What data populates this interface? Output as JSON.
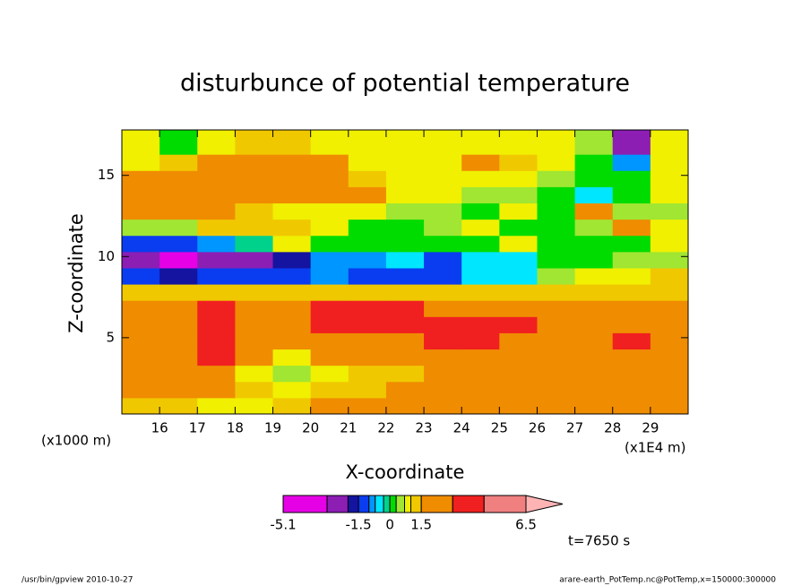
{
  "chart_data": {
    "type": "contour",
    "title": "disturbunce of potential temperature",
    "x_label": "X-coordinate",
    "y_label": "Z-coordinate",
    "y_unit": "(x1000 m)",
    "x_unit": "(x1E4 m)",
    "time_label": "t=7650 s",
    "footer_left": "/usr/bin/gpview  2010-10-27",
    "footer_right": "arare-earth_PotTemp.nc@PotTemp,x=150000:300000",
    "xlim": [
      15,
      30
    ],
    "ylim": [
      0.3,
      17.8
    ],
    "xticks": [
      16,
      17,
      18,
      19,
      20,
      21,
      22,
      23,
      24,
      25,
      26,
      27,
      28,
      29
    ],
    "yticks": [
      5,
      10,
      15
    ],
    "x": [
      15.5,
      16.5,
      17.5,
      18.5,
      19.5,
      20.5,
      21.5,
      22.5,
      23.5,
      24.5,
      25.5,
      26.5,
      27.5,
      28.5,
      29.5
    ],
    "z": [
      0.8,
      1.8,
      2.8,
      3.8,
      4.8,
      5.8,
      6.8,
      7.8,
      8.8,
      9.8,
      10.8,
      11.8,
      12.8,
      13.8,
      14.8,
      15.8,
      16.8
    ],
    "values": [
      [
        1.2,
        1.2,
        0.8,
        0.8,
        1.2,
        2,
        2,
        2,
        2,
        2,
        2,
        2,
        2,
        2,
        2
      ],
      [
        2,
        2,
        1.8,
        1.2,
        0.8,
        1.2,
        1.2,
        2,
        2,
        2,
        2,
        2,
        2,
        2,
        2
      ],
      [
        2,
        2,
        2,
        0.8,
        0.5,
        0.8,
        1.2,
        1.2,
        2,
        2,
        2,
        2,
        2,
        2,
        2
      ],
      [
        2,
        2,
        3.5,
        2,
        0.8,
        2,
        2,
        2,
        2,
        2,
        2,
        2,
        2,
        2,
        2
      ],
      [
        2,
        2,
        3.5,
        2,
        2,
        2,
        2,
        2,
        3.5,
        3.5,
        2,
        2,
        2,
        3.5,
        2
      ],
      [
        2,
        2,
        3.5,
        2,
        2,
        3.5,
        3.5,
        3.5,
        3.5,
        3.5,
        3.5,
        2,
        2,
        2,
        2
      ],
      [
        2,
        2,
        3.5,
        2,
        2,
        3.5,
        3.5,
        3.5,
        2,
        2,
        2,
        2,
        2,
        2,
        2
      ],
      [
        1.2,
        1.2,
        1.2,
        1.2,
        1.2,
        1.2,
        1.2,
        1.2,
        1.2,
        1.2,
        1.2,
        1.2,
        1.2,
        1.2,
        1.2
      ],
      [
        -1.2,
        -1.8,
        -1.2,
        -1.2,
        -1.2,
        -0.8,
        -1.2,
        -1.2,
        -1.2,
        -0.5,
        -0.5,
        0.5,
        0.8,
        0.8,
        1
      ],
      [
        -2.5,
        -3.5,
        -2.5,
        -2.5,
        -1.8,
        -0.8,
        -0.8,
        -0.5,
        -1.2,
        -0.5,
        -0.5,
        0.2,
        0.1,
        0.5,
        0.5
      ],
      [
        -1.2,
        -1.2,
        -0.8,
        -0.2,
        0.8,
        0.1,
        0.2,
        0.2,
        0.1,
        0.2,
        0.8,
        0.1,
        0.1,
        0.2,
        0.8
      ],
      [
        0.5,
        0.5,
        1.2,
        1.2,
        1.2,
        0.8,
        0.2,
        0.2,
        0.5,
        0.8,
        0.2,
        0.1,
        0.5,
        2,
        0.8
      ],
      [
        2,
        2,
        2,
        1.2,
        0.8,
        0.8,
        0.8,
        0.5,
        0.5,
        0.2,
        0.8,
        0.2,
        2,
        0.5,
        0.5
      ],
      [
        2,
        2,
        2,
        2,
        2,
        2,
        2,
        0.8,
        0.8,
        0.5,
        0.5,
        0.2,
        -0.5,
        0.2,
        0.8
      ],
      [
        2,
        2,
        2,
        2,
        2,
        2,
        1.2,
        0.8,
        0.8,
        0.8,
        0.8,
        0.5,
        0.2,
        0.2,
        0.8
      ],
      [
        0.8,
        1.2,
        2,
        2,
        2,
        2,
        0.8,
        0.8,
        0.8,
        2,
        1.2,
        0.8,
        0.2,
        -0.8,
        0.8
      ],
      [
        0.8,
        0.2,
        0.8,
        1.2,
        1.2,
        0.8,
        0.8,
        0.8,
        0.8,
        0.8,
        0.8,
        0.8,
        0.5,
        -2.5,
        0.8
      ]
    ],
    "levels": [
      -5.1,
      -3,
      -2,
      -1.5,
      -1,
      -0.7,
      -0.3,
      0,
      0.3,
      0.7,
      1,
      1.5,
      3,
      4.5,
      6.5
    ],
    "colors": [
      "#e600e6",
      "#8c1eb4",
      "#1414a0",
      "#0a3cf0",
      "#0096ff",
      "#00e6ff",
      "#00d28c",
      "#00dc00",
      "#a0e632",
      "#f0f000",
      "#f0c800",
      "#f08c00",
      "#f02020",
      "#f08080",
      "#ffb4b4"
    ],
    "colorbar_ticks": [
      -5.1,
      -1.5,
      0,
      1.5,
      6.5
    ]
  }
}
